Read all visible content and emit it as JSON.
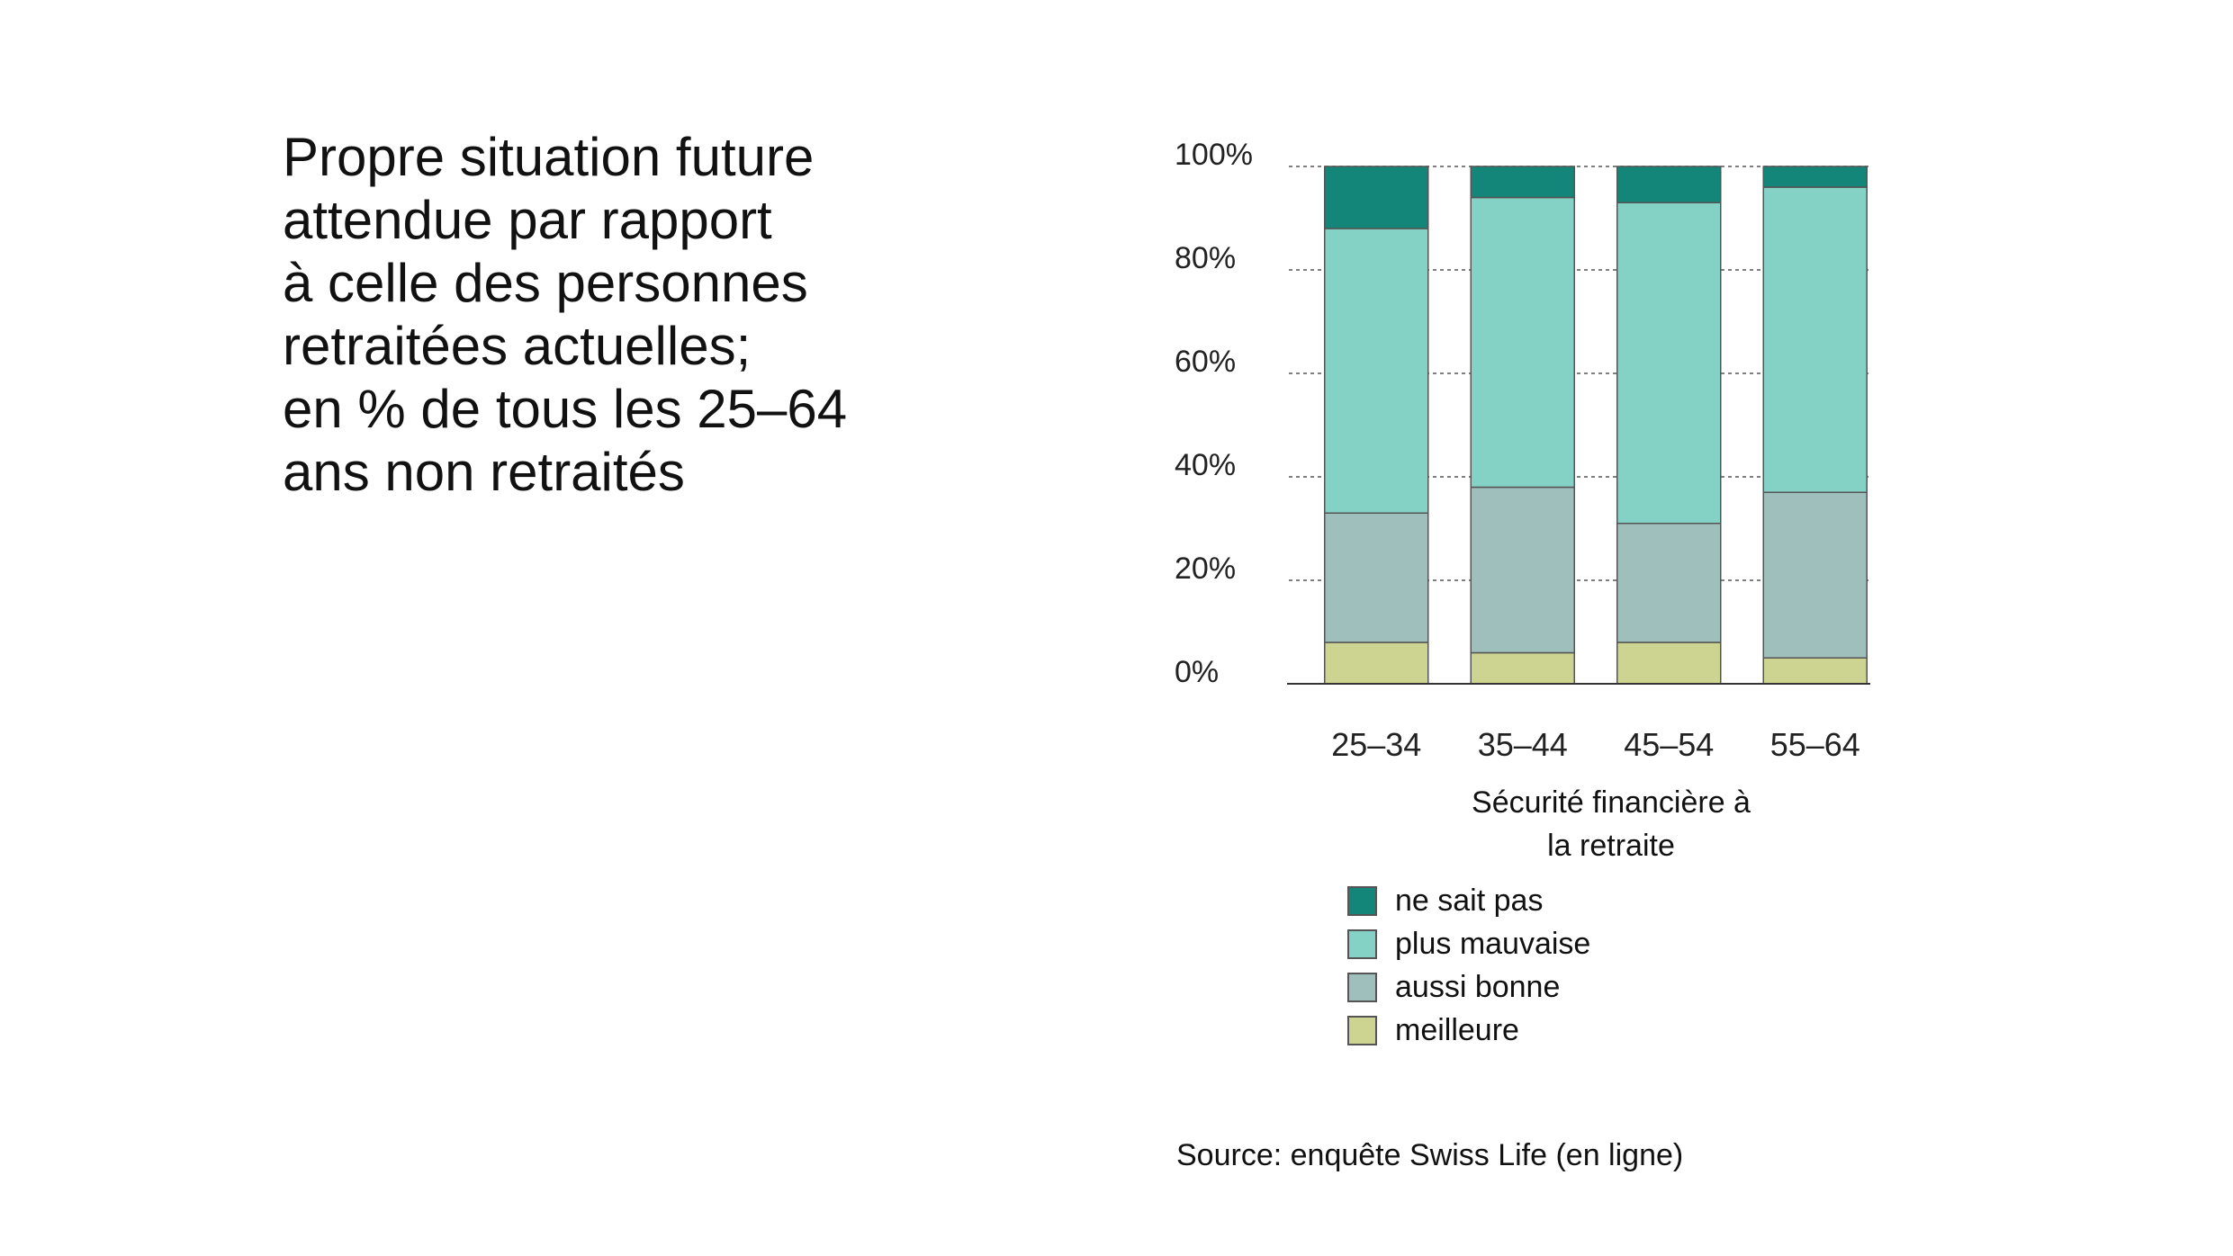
{
  "title_lines": [
    "Propre situation future",
    "attendue par rapport",
    "à celle des personnes",
    "retraitées actuelles;",
    "en % de tous les 25–64",
    "ans non retraités"
  ],
  "legend_title_lines": [
    "Sécurité financière à",
    "la retraite"
  ],
  "source": "Source: enquête Swiss Life (en ligne)",
  "chart_data": {
    "type": "bar",
    "stacked": true,
    "categories": [
      "25–34",
      "35–44",
      "45–54",
      "55–64"
    ],
    "series": [
      {
        "name": "meilleure",
        "color": "#cdd492",
        "values": [
          8,
          6,
          8,
          5
        ]
      },
      {
        "name": "aussi bonne",
        "color": "#9fbfbc",
        "values": [
          25,
          32,
          23,
          32
        ]
      },
      {
        "name": "plus mauvaise",
        "color": "#84d1c5",
        "values": [
          55,
          56,
          62,
          59
        ]
      },
      {
        "name": "ne sait pas",
        "color": "#138579",
        "values": [
          12,
          6,
          7,
          4
        ]
      }
    ],
    "legend_order": [
      "ne sait pas",
      "plus mauvaise",
      "aussi bonne",
      "meilleure"
    ],
    "ylim": [
      0,
      100
    ],
    "yticks": [
      "0%",
      "20%",
      "40%",
      "60%",
      "80%",
      "100%"
    ],
    "grid": true,
    "legend_position": "below"
  }
}
